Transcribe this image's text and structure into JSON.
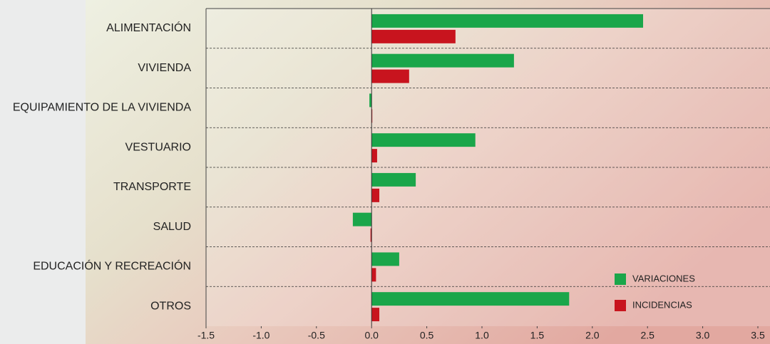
{
  "chart_data": {
    "type": "hbar",
    "categories": [
      "ALIMENTACIÓN",
      "VIVIENDA",
      "EQUIPAMIENTO DE LA VIVIENDA",
      "VESTUARIO",
      "TRANSPORTE",
      "SALUD",
      "EDUCACIÓN Y RECREACIÓN",
      "OTROS"
    ],
    "series": [
      {
        "name": "VARIACIONES",
        "color": "#1aa64a",
        "values": [
          2.46,
          1.29,
          -0.02,
          0.94,
          0.4,
          -0.17,
          0.25,
          1.79
        ]
      },
      {
        "name": "INCIDENCIAS",
        "color": "#c8141e",
        "values": [
          0.76,
          0.34,
          0.0,
          0.05,
          0.07,
          -0.01,
          0.04,
          0.07
        ]
      }
    ],
    "xlim": [
      -1.5,
      3.5
    ],
    "xticks": [
      {
        "value": -1.5,
        "label": "-1.5"
      },
      {
        "value": -1.0,
        "label": "-1.0"
      },
      {
        "value": -0.5,
        "label": "-0.5"
      },
      {
        "value": 0,
        "label": "0.0"
      },
      {
        "value": 0.5,
        "label": "0.5"
      },
      {
        "value": 1.0,
        "label": "1.0"
      },
      {
        "value": 1.5,
        "label": "1.5"
      },
      {
        "value": 2.0,
        "label": "2.0"
      },
      {
        "value": 2.5,
        "label": "2.5"
      },
      {
        "value": 3.0,
        "label": "3.0"
      },
      {
        "value": 3.5,
        "label": "3.5"
      }
    ],
    "legend": "bottom-right"
  }
}
